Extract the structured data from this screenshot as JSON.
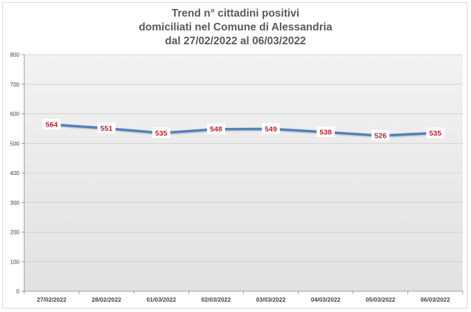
{
  "chart_data": {
    "type": "line",
    "title": [
      "Trend n° cittadini positivi",
      "domiciliati nel Comune di Alessandria",
      "dal 27/02/2022 al 06/03/2022"
    ],
    "categories": [
      "27/02/2022",
      "28/02/2022",
      "01/03/2022",
      "02/03/2022",
      "03/03/2022",
      "04/03/2022",
      "05/03/2022",
      "06/03/2022"
    ],
    "series": [
      {
        "values": [
          564,
          551,
          535,
          548,
          549,
          538,
          526,
          535
        ]
      }
    ],
    "ylim": [
      0,
      800
    ],
    "yticks": [
      0,
      100,
      200,
      300,
      400,
      500,
      600,
      700,
      800
    ],
    "grid": true,
    "line_color": "#4f81bd",
    "label_color": "#c0202a",
    "plot_bg": "#ebebeb"
  }
}
